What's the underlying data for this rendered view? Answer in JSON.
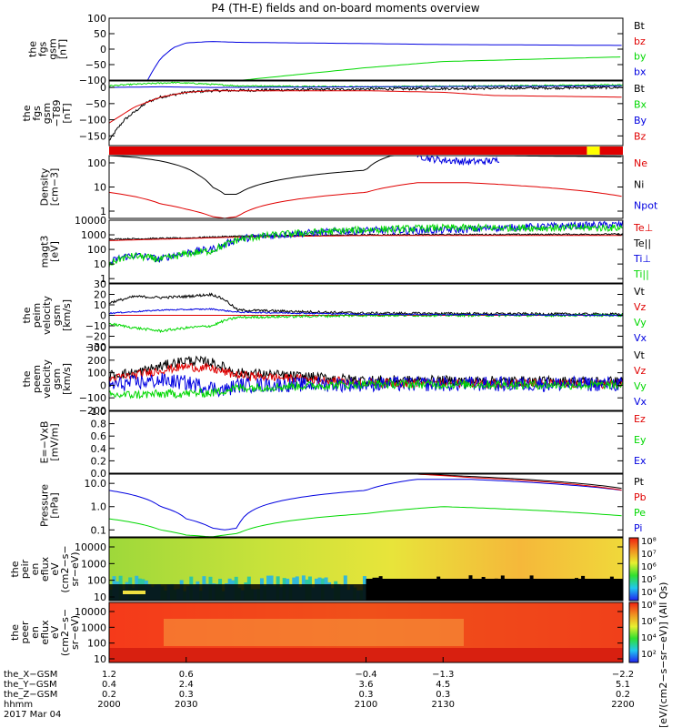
{
  "title": "P4 (TH-E) fields and on-board moments overview",
  "colors": {
    "black": "#000000",
    "red": "#e00000",
    "green": "#00d800",
    "blue": "#0000e0",
    "yellow": "#ffff00"
  },
  "chart_data": [
    {
      "id": "fgs_gsm",
      "type": "line",
      "ylabel": [
        "the",
        "fgs",
        "gsm",
        "[nT]"
      ],
      "ylim": [
        -100,
        100
      ],
      "ticks": [
        "100",
        "50",
        "0",
        "−50",
        "−100"
      ],
      "legend": [
        {
          "name": "Bt",
          "color": "black"
        },
        {
          "name": "bz",
          "color": "red"
        },
        {
          "name": "by",
          "color": "green"
        },
        {
          "name": "bx",
          "color": "blue"
        }
      ],
      "series": [
        {
          "name": "bx",
          "color": "blue",
          "x": [
            2015,
            2017,
            2020,
            2025,
            2030,
            2040,
            2050,
            2100,
            2130,
            2200
          ],
          "y": [
            -100,
            -70,
            -30,
            5,
            20,
            25,
            22,
            18,
            15,
            12
          ]
        },
        {
          "name": "by",
          "color": "green",
          "x": [
            2052,
            2100,
            2130,
            2200
          ],
          "y": [
            -100,
            -60,
            -40,
            -25
          ]
        }
      ]
    },
    {
      "id": "fgs_gsm_t89",
      "type": "line",
      "ylabel": [
        "the",
        "fgs",
        "gsm",
        "−T89",
        "[nT]"
      ],
      "ylim": [
        -180,
        20
      ],
      "ticks": [
        "0",
        "−50",
        "−100",
        "−150"
      ],
      "legend": [
        {
          "name": "Bt",
          "color": "black"
        },
        {
          "name": "Bx",
          "color": "green"
        },
        {
          "name": "By",
          "color": "blue"
        },
        {
          "name": "Bz",
          "color": "red"
        }
      ],
      "series": [
        {
          "name": "Bt",
          "color": "black",
          "noise": 4,
          "x": [
            2000,
            2003,
            2006,
            2010,
            2015,
            2020,
            2030,
            2040,
            2100,
            2200
          ],
          "y": [
            -165,
            -130,
            -100,
            -75,
            -45,
            -30,
            -15,
            -10,
            -5,
            0
          ]
        },
        {
          "name": "Bz",
          "color": "red",
          "x": [
            2000,
            2010,
            2020,
            2030,
            2040,
            2100,
            2130,
            2150,
            2200
          ],
          "y": [
            -110,
            -60,
            -30,
            -15,
            -10,
            -10,
            -15,
            -25,
            -30
          ]
        },
        {
          "name": "Bx",
          "color": "green",
          "noise": 2,
          "x": [
            2000,
            2010,
            2025,
            2035,
            2050,
            2100,
            2200
          ],
          "y": [
            5,
            10,
            15,
            12,
            5,
            2,
            8
          ]
        },
        {
          "name": "By",
          "color": "blue",
          "x": [
            2000,
            2020,
            2040,
            2100,
            2200
          ],
          "y": [
            0,
            2,
            0,
            2,
            5
          ]
        }
      ]
    },
    {
      "id": "esa_flag",
      "type": "bar",
      "segments": [
        {
          "from": 2000,
          "to": 2186,
          "color": "red"
        },
        {
          "from": 2186,
          "to": 2191,
          "color": "yellow"
        },
        {
          "from": 2191,
          "to": 2200,
          "color": "red"
        }
      ]
    },
    {
      "id": "density",
      "type": "line",
      "log": true,
      "ylabel": [
        "Density",
        "[cm−3]"
      ],
      "ylim": [
        0.5,
        200
      ],
      "ticks": [
        "100",
        "10",
        "1"
      ],
      "legend": [
        {
          "name": "Ne",
          "color": "red"
        },
        {
          "name": "Ni",
          "color": "black"
        },
        {
          "name": "Npot",
          "color": "blue"
        }
      ],
      "series": [
        {
          "name": "Ni",
          "color": "black",
          "x": [
            2000,
            2010,
            2020,
            2030,
            2035,
            2040,
            2045,
            2050,
            2100,
            2110,
            2140,
            2200
          ],
          "y": [
            200,
            170,
            120,
            60,
            30,
            10,
            5,
            5,
            50,
            200,
            200,
            180
          ]
        },
        {
          "name": "Ne",
          "color": "red",
          "x": [
            2000,
            2010,
            2020,
            2030,
            2040,
            2045,
            2050,
            2100,
            2120,
            2140,
            2200
          ],
          "y": [
            6,
            4,
            2,
            1.2,
            0.6,
            0.5,
            0.6,
            6,
            15,
            15,
            4
          ]
        },
        {
          "name": "Npot",
          "color": "blue",
          "noise": 0.15,
          "x": [
            2120,
            2125,
            2130,
            2140,
            2150,
            2152
          ],
          "y": [
            200,
            150,
            130,
            110,
            120,
            150
          ]
        }
      ]
    },
    {
      "id": "temperature",
      "type": "line",
      "log": true,
      "ylabel": [
        "magt3",
        "[eV]"
      ],
      "ylim": [
        0.5,
        10000
      ],
      "ticks": [
        "10000",
        "1000",
        "100",
        "10",
        "1"
      ],
      "legend": [
        {
          "name": "Te⊥",
          "color": "red"
        },
        {
          "name": "Te||",
          "color": "black"
        },
        {
          "name": "Ti⊥",
          "color": "blue"
        },
        {
          "name": "Ti||",
          "color": "green"
        }
      ],
      "series": [
        {
          "name": "Te||",
          "color": "black",
          "noise": 0.05,
          "x": [
            2000,
            2030,
            2050,
            2100,
            2200
          ],
          "y": [
            500,
            600,
            800,
            1000,
            1100
          ]
        },
        {
          "name": "Te⊥",
          "color": "red",
          "x": [
            2000,
            2030,
            2050,
            2100,
            2200
          ],
          "y": [
            400,
            550,
            700,
            900,
            900
          ]
        },
        {
          "name": "Ti⊥",
          "color": "blue",
          "noise": 0.25,
          "x": [
            2000,
            2005,
            2010,
            2020,
            2025,
            2030,
            2040,
            2045,
            2050,
            2100,
            2130,
            2200
          ],
          "y": [
            10,
            30,
            40,
            20,
            40,
            60,
            100,
            200,
            500,
            2000,
            2000,
            5000
          ]
        },
        {
          "name": "Ti||",
          "color": "green",
          "noise": 0.25,
          "x": [
            2000,
            2005,
            2010,
            2020,
            2025,
            2030,
            2040,
            2045,
            2050,
            2100,
            2130,
            2200
          ],
          "y": [
            8,
            25,
            35,
            20,
            30,
            50,
            80,
            180,
            450,
            2200,
            3000,
            3000
          ]
        }
      ]
    },
    {
      "id": "peim_velocity",
      "type": "line",
      "ylabel": [
        "the",
        "peim",
        "velocity",
        "gsm",
        "[km/s]"
      ],
      "ylim": [
        -30,
        30
      ],
      "ticks": [
        "30",
        "20",
        "10",
        "0",
        "−10",
        "−20",
        "−30"
      ],
      "legend": [
        {
          "name": "Vt",
          "color": "black"
        },
        {
          "name": "Vz",
          "color": "red"
        },
        {
          "name": "Vy",
          "color": "green"
        },
        {
          "name": "Vx",
          "color": "blue"
        }
      ],
      "series": [
        {
          "name": "Vt",
          "color": "black",
          "noise": 1.2,
          "x": [
            2000,
            2005,
            2010,
            2020,
            2030,
            2040,
            2045,
            2050,
            2100,
            2200
          ],
          "y": [
            12,
            15,
            18,
            17,
            18,
            20,
            15,
            5,
            2,
            1
          ]
        },
        {
          "name": "Vz",
          "color": "red",
          "x": [
            2000,
            2050,
            2200
          ],
          "y": [
            0,
            0,
            0
          ]
        },
        {
          "name": "Vy",
          "color": "green",
          "noise": 1.2,
          "x": [
            2000,
            2010,
            2020,
            2030,
            2040,
            2045,
            2050,
            2100,
            2200
          ],
          "y": [
            -8,
            -12,
            -15,
            -12,
            -10,
            -5,
            -2,
            0,
            0
          ]
        },
        {
          "name": "Vx",
          "color": "blue",
          "noise": 0.6,
          "x": [
            2000,
            2020,
            2040,
            2050,
            2100,
            2200
          ],
          "y": [
            2,
            5,
            6,
            3,
            1,
            0
          ]
        }
      ]
    },
    {
      "id": "peem_velocity",
      "type": "line",
      "ylabel": [
        "the",
        "peem",
        "velocity",
        "gsm",
        "[km/s]"
      ],
      "ylim": [
        -200,
        300
      ],
      "ticks": [
        "300",
        "200",
        "100",
        "0",
        "−100",
        "−200"
      ],
      "legend": [
        {
          "name": "Vt",
          "color": "black"
        },
        {
          "name": "Vz",
          "color": "red"
        },
        {
          "name": "Vy",
          "color": "green"
        },
        {
          "name": "Vx",
          "color": "blue"
        }
      ],
      "series": [
        {
          "name": "Vt",
          "color": "black",
          "noise": 40,
          "x": [
            2000,
            2010,
            2020,
            2030,
            2040,
            2050,
            2100,
            2200
          ],
          "y": [
            80,
            100,
            150,
            200,
            180,
            100,
            40,
            30
          ]
        },
        {
          "name": "Vz",
          "color": "red",
          "noise": 35,
          "x": [
            2000,
            2010,
            2020,
            2030,
            2040,
            2050,
            2100,
            2200
          ],
          "y": [
            50,
            80,
            120,
            150,
            130,
            80,
            20,
            10
          ]
        },
        {
          "name": "Vx",
          "color": "blue",
          "noise": 60,
          "x": [
            2000,
            2010,
            2020,
            2030,
            2040,
            2045,
            2050,
            2100,
            2200
          ],
          "y": [
            0,
            20,
            40,
            20,
            -20,
            -40,
            0,
            10,
            10
          ]
        },
        {
          "name": "Vy",
          "color": "green",
          "noise": 35,
          "x": [
            2000,
            2020,
            2040,
            2050,
            2100,
            2200
          ],
          "y": [
            -80,
            -70,
            -60,
            -20,
            10,
            0
          ]
        }
      ]
    },
    {
      "id": "efield",
      "type": "line",
      "ylabel": [
        "E=−VxB",
        "[mV/m]"
      ],
      "ylim": [
        0,
        1
      ],
      "ticks": [
        "1.0",
        "0.8",
        "0.6",
        "0.4",
        "0.2",
        "0.0"
      ],
      "legend": [
        {
          "name": "Ez",
          "color": "red"
        },
        {
          "name": "Ey",
          "color": "green"
        },
        {
          "name": "Ex",
          "color": "blue"
        }
      ],
      "series": []
    },
    {
      "id": "pressure",
      "type": "line",
      "log": true,
      "ylabel": [
        "Pressure",
        "[nPa]"
      ],
      "ylim": [
        0.05,
        25
      ],
      "ticks": [
        "10.0",
        "1.0",
        "0.1"
      ],
      "legend": [
        {
          "name": "Pt",
          "color": "black"
        },
        {
          "name": "Pb",
          "color": "red"
        },
        {
          "name": "Pe",
          "color": "green"
        },
        {
          "name": "Pi",
          "color": "blue"
        }
      ],
      "series": [
        {
          "name": "Pi",
          "color": "blue",
          "x": [
            2000,
            2010,
            2020,
            2030,
            2040,
            2045,
            2050,
            2100,
            2120,
            2140,
            2200
          ],
          "y": [
            5,
            3,
            1,
            0.3,
            0.12,
            0.1,
            0.12,
            5,
            15,
            15,
            5
          ]
        },
        {
          "name": "Pe",
          "color": "green",
          "x": [
            2000,
            2010,
            2020,
            2030,
            2040,
            2050,
            2100,
            2130,
            2200
          ],
          "y": [
            0.3,
            0.2,
            0.1,
            0.06,
            0.05,
            0.07,
            0.5,
            1,
            0.4
          ]
        },
        {
          "name": "Pt",
          "color": "black",
          "x": [
            2120,
            2140,
            2200
          ],
          "y": [
            25,
            20,
            6
          ]
        },
        {
          "name": "Pb",
          "color": "red",
          "x": [
            2120,
            2140,
            2200
          ],
          "y": [
            25,
            18,
            5
          ]
        }
      ]
    },
    {
      "id": "peir_eflux",
      "type": "heatmap",
      "ylabel": [
        "the",
        "peir",
        "en",
        "eflux",
        "eV",
        "(cm2−s−",
        "sr−eV)"
      ],
      "ticks": [
        "10000",
        "1000",
        "100",
        "10"
      ]
    },
    {
      "id": "peer_eflux",
      "type": "heatmap",
      "ylabel": [
        "the",
        "peer",
        "en",
        "eflux",
        "eV",
        "(cm2−s−",
        "sr−eV)"
      ],
      "ticks": [
        "10000",
        "1000",
        "100",
        "10"
      ]
    }
  ],
  "colorbar": {
    "ticks": [
      "10⁸",
      "10⁷",
      "10⁶",
      "10⁵",
      "10⁴"
    ],
    "ticks2": [
      "10⁸",
      "10⁶",
      "10⁴",
      "10²"
    ],
    "label": "[eV/(cm2−s−sr−eV)] (All Qs)"
  },
  "xaxis": {
    "xlim": [
      2000,
      2200
    ],
    "tick_positions": [
      2000,
      2030,
      2100,
      2130,
      2200
    ],
    "rows": [
      {
        "label": "the_X−GSM",
        "values": [
          "1.2",
          "0.6",
          "−0.4",
          "−1.3",
          "−2.2"
        ]
      },
      {
        "label": "the_Y−GSM",
        "values": [
          "0.4",
          "2.4",
          "3.6",
          "4.5",
          "5.1"
        ]
      },
      {
        "label": "the_Z−GSM",
        "values": [
          "0.2",
          "0.3",
          "0.3",
          "0.3",
          "0.2"
        ]
      },
      {
        "label": "hhmm",
        "values": [
          "2000",
          "2030",
          "2100",
          "2130",
          "2200"
        ]
      }
    ],
    "date": "2017 Mar 04"
  }
}
